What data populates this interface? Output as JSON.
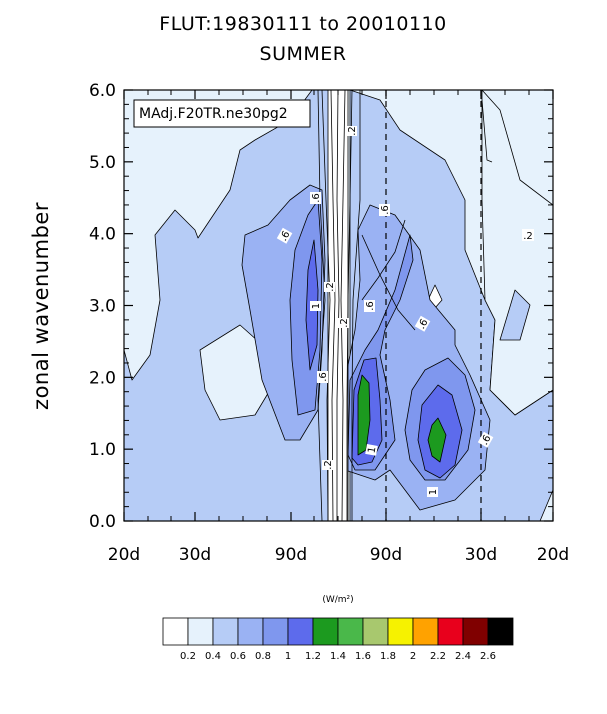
{
  "chart_data": {
    "type": "filled-contour",
    "title": "FLUT:19830111 to 20010110",
    "subtitle": "SUMMER",
    "case_label": "MAdj.F20TR.ne30pg2",
    "ylabel": "zonal wavenumber",
    "xlabel": "",
    "y_ticks": [
      "0.0",
      "1.0",
      "2.0",
      "3.0",
      "4.0",
      "5.0",
      "6.0"
    ],
    "ylim": [
      0,
      6
    ],
    "x_ticks": [
      "20d",
      "30d",
      "90d",
      "90d",
      "30d",
      "20d"
    ],
    "dashed_reference_lines": [
      "90d",
      "30d"
    ],
    "units": "(W/m²)",
    "colorbar": {
      "levels": [
        "0.2",
        "0.4",
        "0.6",
        "0.8",
        "1",
        "1.2",
        "1.4",
        "1.6",
        "1.8",
        "2",
        "2.2",
        "2.4",
        "2.6"
      ],
      "colors": [
        "#ffffff",
        "#e6f2fc",
        "#b6ccf6",
        "#9ab2f3",
        "#7f97ee",
        "#5d6bec",
        "#1c9a1f",
        "#4ab84a",
        "#a8c86e",
        "#f6f200",
        "#ffa200",
        "#e8001c",
        "#800000",
        "#000000"
      ]
    },
    "contour_labels": [
      ".2",
      ".2",
      ".2",
      ".2",
      ".2",
      ".6",
      ".6",
      ".6",
      ".6",
      ".6",
      ".6",
      ".6",
      "1",
      "1",
      "1",
      "1",
      ".6"
    ],
    "max_value_region": "1.2-1.4"
  }
}
